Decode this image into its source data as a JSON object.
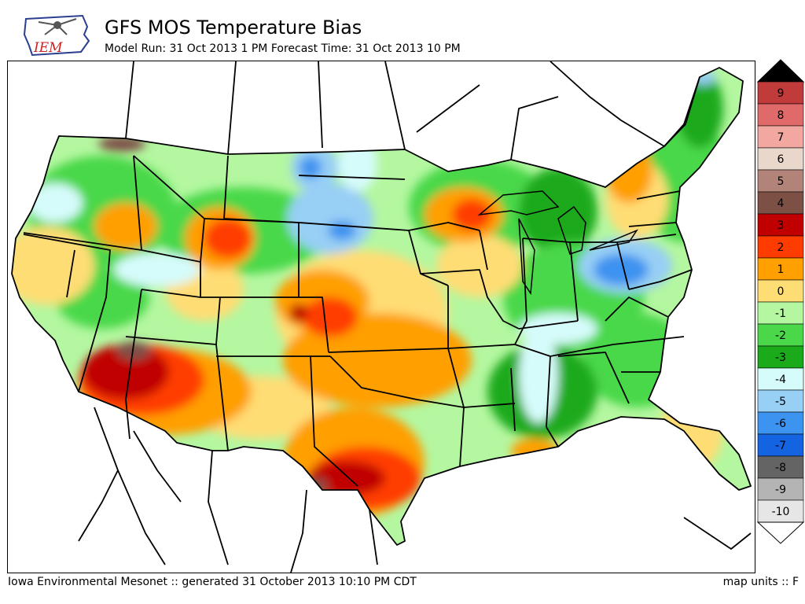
{
  "logo": {
    "text": "IEM",
    "text_color": "#cc2222",
    "state_color": "#2a3f8f"
  },
  "header": {
    "title": "GFS MOS Temperature Bias",
    "subtitle": "Model Run: 31 Oct 2013 1 PM Forecast Time: 31 Oct 2013 10 PM"
  },
  "footer": {
    "left": "Iowa Environmental Mesonet :: generated 31 October 2013 10:10 PM CDT",
    "right": "map units :: F"
  },
  "colorbar": {
    "labels": [
      "9",
      "8",
      "7",
      "6",
      "5",
      "4",
      "3",
      "2",
      "1",
      "0",
      "-1",
      "-2",
      "-3",
      "-4",
      "-5",
      "-6",
      "-7",
      "-8",
      "-9",
      "-10"
    ],
    "top_color": "#000000",
    "bottom_color": "#ffffff",
    "colors": {
      "9": "#c13b3b",
      "8": "#e06a6a",
      "7": "#f2a8a0",
      "6": "#ead7cc",
      "5": "#b28479",
      "4": "#7d5046",
      "3": "#c00000",
      "2": "#ff3c00",
      "1": "#ff9f00",
      "0": "#ffdd75",
      "-1": "#b4f7a0",
      "-2": "#4ad84a",
      "-3": "#1aaa1a",
      "-4": "#d6fbfb",
      "-5": "#97cff5",
      "-6": "#3d93f0",
      "-7": "#1463e0",
      "-8": "#646464",
      "-9": "#b4b4b4",
      "-10": "#e6e6e6"
    }
  }
}
